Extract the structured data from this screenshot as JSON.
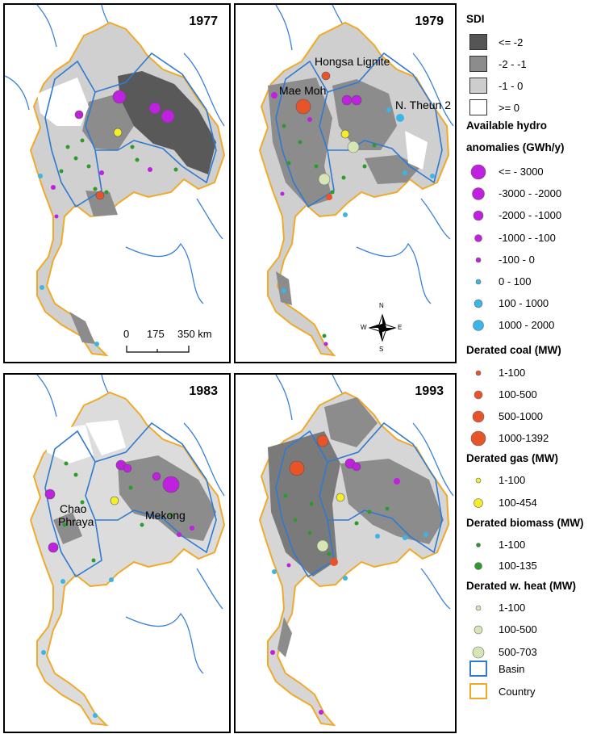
{
  "panels": [
    {
      "year": "1977",
      "labels": []
    },
    {
      "year": "1979",
      "labels": [
        "Hongsa Lignite",
        "Mae Moh",
        "N. Theun 2"
      ]
    },
    {
      "year": "1983",
      "labels": [
        "Chao",
        "Phraya",
        "Mekong"
      ]
    },
    {
      "year": "1993",
      "labels": []
    }
  ],
  "scale_bar": {
    "ticks": [
      "0",
      "175",
      "350 km"
    ]
  },
  "compass": {
    "n": "N",
    "s": "S",
    "e": "E",
    "w": "W"
  },
  "legend": {
    "sdi": {
      "title": "SDI",
      "items": [
        {
          "label": "<= -2",
          "color": "#555555"
        },
        {
          "label": "-2 - -1",
          "color": "#8c8c8c"
        },
        {
          "label": "-1 - 0",
          "color": "#cdcdcd"
        },
        {
          "label": ">= 0",
          "color": "#ffffff"
        }
      ]
    },
    "hydro": {
      "title_line1": "Available hydro",
      "title_line2": "anomalies (GWh/y)",
      "items": [
        {
          "label": "<= - 3000",
          "color": "#c020e0"
        },
        {
          "label": "-3000 - -2000",
          "color": "#c020e0"
        },
        {
          "label": "-2000 - -1000",
          "color": "#c020e0"
        },
        {
          "label": "-1000 - -100",
          "color": "#c020e0"
        },
        {
          "label": "-100 - 0",
          "color": "#c020e0"
        },
        {
          "label": "0 - 100",
          "color": "#3bb5e8"
        },
        {
          "label": "100 - 1000",
          "color": "#3bb5e8"
        },
        {
          "label": "1000 - 2000",
          "color": "#3bb5e8"
        }
      ]
    },
    "coal": {
      "title": "Derated coal (MW)",
      "items": [
        {
          "label": "1-100",
          "color": "#e8542a"
        },
        {
          "label": "100-500",
          "color": "#e8542a"
        },
        {
          "label": "500-1000",
          "color": "#e8542a"
        },
        {
          "label": "1000-1392",
          "color": "#e8542a"
        }
      ]
    },
    "gas": {
      "title": "Derated gas (MW)",
      "items": [
        {
          "label": "1-100",
          "color": "#f3ee2a"
        },
        {
          "label": "100-454",
          "color": "#f3ee2a"
        }
      ]
    },
    "biomass": {
      "title": "Derated biomass (MW)",
      "items": [
        {
          "label": "1-100",
          "color": "#2e9a2e"
        },
        {
          "label": "100-135",
          "color": "#2e9a2e"
        }
      ]
    },
    "wheat": {
      "title": "Derated w. heat (MW)",
      "items": [
        {
          "label": "1-100",
          "color": "#d6e4b6"
        },
        {
          "label": "100-500",
          "color": "#d6e4b6"
        },
        {
          "label": "500-703",
          "color": "#d6e4b6"
        }
      ]
    },
    "lines": [
      {
        "label": "Basin",
        "color": "#2f7ad0"
      },
      {
        "label": "Country",
        "color": "#f0aa2a"
      }
    ]
  }
}
